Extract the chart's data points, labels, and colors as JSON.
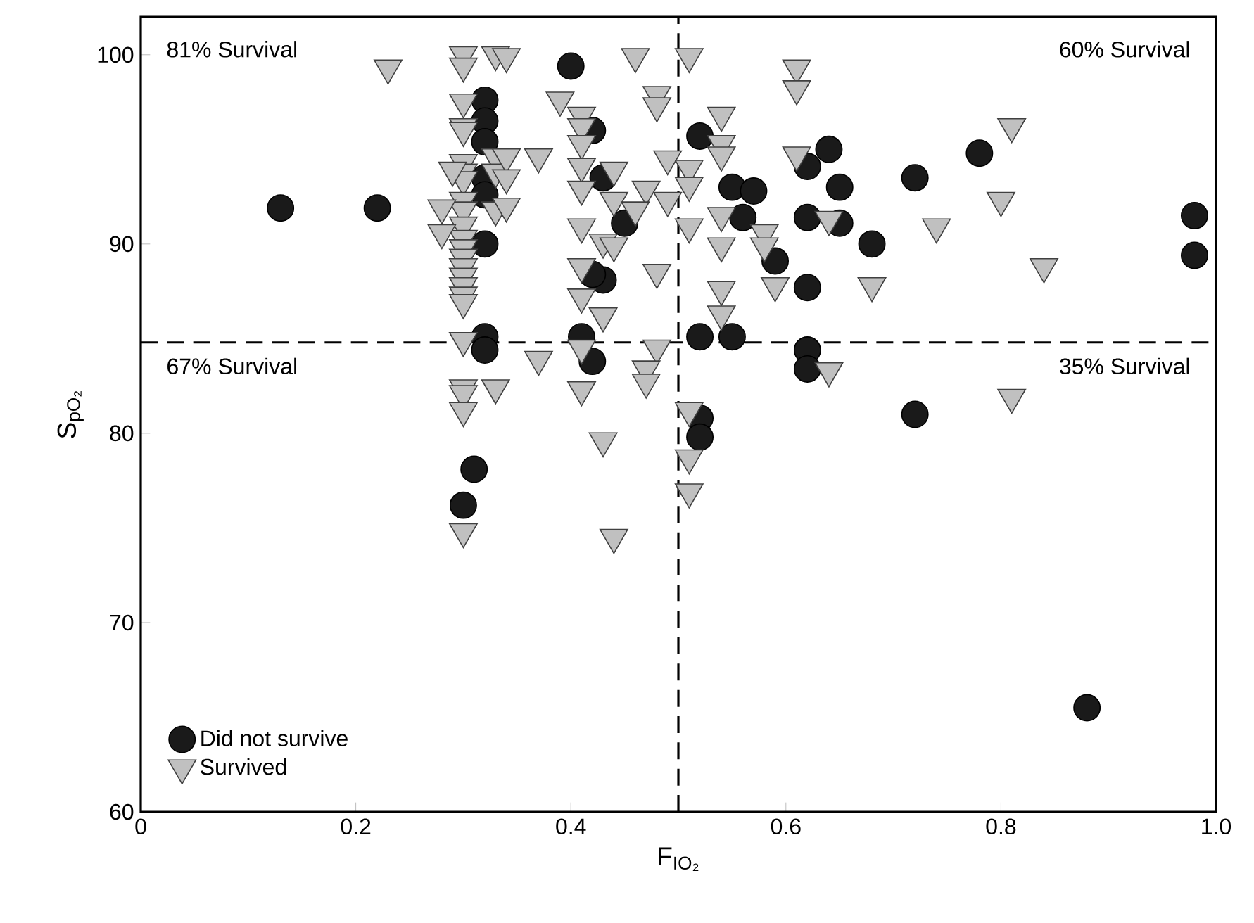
{
  "chart_data": {
    "type": "scatter",
    "xlabel": "F$_{IO₂}$",
    "ylabel": "S$_{pO₂}$",
    "xlim": [
      0,
      1
    ],
    "ylim": [
      60,
      102
    ],
    "xticks": [
      0,
      0.2,
      0.4,
      0.6,
      0.8,
      {
        "value": 1,
        "label": "1.0"
      }
    ],
    "yticks": [
      60,
      70,
      80,
      90,
      100
    ],
    "legend": "bottom left",
    "ref_lines": [
      {
        "axis": "x",
        "value": 0.5,
        "line_style": "dashed"
      },
      {
        "axis": "y",
        "value": 84.8,
        "line_style": "dashed"
      }
    ],
    "annotations": [
      "81% Survival",
      "60% Survival",
      "67% Survival",
      "35% Survival"
    ],
    "series": [
      {
        "name": "Did not survive",
        "color": "#1a1a1a",
        "marker": "circle",
        "x": [
          0.13,
          0.22,
          0.32,
          0.32,
          0.32,
          0.32,
          0.32,
          0.32,
          0.32,
          0.32,
          0.31,
          0.3,
          0.4,
          0.42,
          0.52,
          0.43,
          0.55,
          0.57,
          0.56,
          0.45,
          0.62,
          0.59,
          0.43,
          0.42,
          0.62,
          0.41,
          0.52,
          0.55,
          0.42,
          0.62,
          0.62,
          0.52,
          0.52,
          0.64,
          0.62,
          0.65,
          0.72,
          0.78,
          0.65,
          0.68,
          0.98,
          0.98,
          0.72,
          0.88
        ],
        "values": [
          91.9,
          91.9,
          97.6,
          96.5,
          95.4,
          93.5,
          92.6,
          90.0,
          85.1,
          84.4,
          78.1,
          76.2,
          99.4,
          96.0,
          95.7,
          93.5,
          93.0,
          92.8,
          91.4,
          91.1,
          91.4,
          89.1,
          88.1,
          88.4,
          87.7,
          85.1,
          85.1,
          85.1,
          83.8,
          84.4,
          83.4,
          80.8,
          79.8,
          95.0,
          94.1,
          93.0,
          93.5,
          94.8,
          91.1,
          90.0,
          91.5,
          89.4,
          81.0,
          65.5
        ]
      },
      {
        "name": "Survived",
        "color": "#c0c0c0",
        "marker": "triangle",
        "x": [
          0.3,
          0.3,
          0.3,
          0.3,
          0.3,
          0.3,
          0.3,
          0.3,
          0.3,
          0.3,
          0.3,
          0.3,
          0.3,
          0.3,
          0.3,
          0.3,
          0.3,
          0.3,
          0.3,
          0.3,
          0.3,
          0.3,
          0.3,
          0.3,
          0.23,
          0.28,
          0.28,
          0.29,
          0.33,
          0.33,
          0.33,
          0.33,
          0.33,
          0.34,
          0.46,
          0.51,
          0.61,
          0.61,
          0.48,
          0.48,
          0.39,
          0.41,
          0.41,
          0.54,
          0.41,
          0.54,
          0.54,
          0.61,
          0.34,
          0.37,
          0.49,
          0.41,
          0.44,
          0.51,
          0.34,
          0.41,
          0.47,
          0.51,
          0.34,
          0.44,
          0.46,
          0.49,
          0.54,
          0.58,
          0.41,
          0.51,
          0.43,
          0.44,
          0.54,
          0.58,
          0.41,
          0.48,
          0.41,
          0.54,
          0.59,
          0.43,
          0.54,
          0.37,
          0.41,
          0.48,
          0.47,
          0.47,
          0.41,
          0.51,
          0.43,
          0.51,
          0.51,
          0.44,
          0.81,
          0.8,
          0.74,
          0.84,
          0.68,
          0.64,
          0.64,
          0.81
        ],
        "values": [
          100.0,
          99.4,
          97.5,
          96.2,
          96.0,
          94.3,
          93.8,
          93.4,
          92.3,
          91.8,
          91.0,
          90.3,
          89.8,
          89.3,
          88.8,
          88.3,
          87.8,
          87.3,
          86.9,
          84.9,
          82.4,
          82.1,
          81.2,
          74.8,
          99.3,
          91.9,
          90.6,
          93.9,
          100.0,
          94.6,
          93.8,
          91.8,
          82.4,
          99.9,
          99.9,
          99.9,
          99.3,
          98.2,
          97.9,
          97.3,
          97.6,
          96.8,
          96.2,
          96.8,
          95.3,
          95.3,
          94.7,
          94.7,
          94.6,
          94.6,
          94.5,
          94.1,
          93.9,
          94.0,
          93.5,
          92.9,
          92.9,
          93.1,
          92.0,
          92.3,
          91.8,
          92.3,
          91.5,
          90.6,
          90.9,
          90.9,
          90.1,
          89.9,
          89.9,
          89.9,
          88.8,
          88.5,
          87.2,
          87.6,
          87.8,
          86.2,
          86.3,
          83.9,
          84.5,
          84.5,
          83.4,
          82.7,
          82.3,
          81.2,
          79.6,
          78.7,
          76.9,
          74.5,
          96.2,
          92.3,
          90.9,
          88.8,
          87.8,
          91.3,
          83.3,
          81.9
        ]
      }
    ]
  }
}
